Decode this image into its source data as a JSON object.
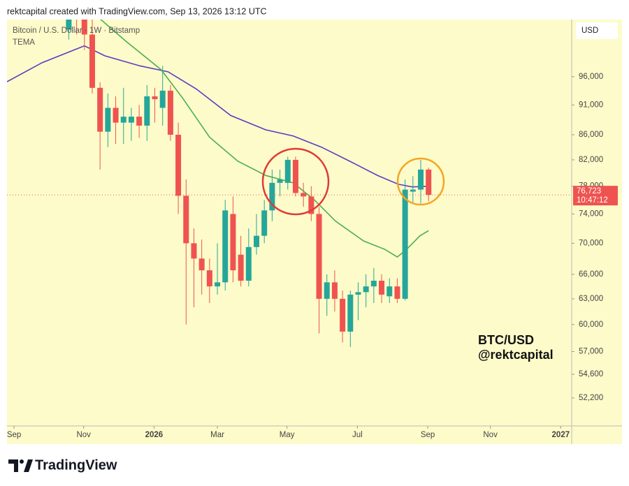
{
  "header": "rektcapital created with TradingView.com, Sep 13, 2026 13:12 UTC",
  "footer": {
    "logo": "TradingView"
  },
  "chart_data": {
    "type": "candlestick",
    "title": "Bitcoin / U.S. Dollar · 1W · Bitstamp",
    "subtitle": "TEMA",
    "currency": "USD",
    "annotations": [
      "BTC/USD",
      "@rektcapital"
    ],
    "yscale": "log",
    "up_color": "#26a69a",
    "down_color": "#ef5350",
    "background": "#fdfbc9",
    "x": [
      7,
      8,
      9,
      10,
      11,
      12,
      13,
      14,
      15,
      16,
      17,
      18,
      19,
      20,
      21,
      22,
      23,
      24,
      25,
      26,
      27,
      28,
      29,
      30,
      31,
      32,
      33,
      34,
      35,
      36,
      37,
      38,
      39,
      40,
      41,
      42,
      43,
      44,
      45,
      46,
      47,
      48,
      49,
      50,
      51,
      52,
      53
    ],
    "open": [
      105000,
      110000,
      108000,
      104000,
      94000,
      86500,
      90500,
      88000,
      88000,
      89000,
      87500,
      92500,
      90500,
      93500,
      86000,
      76600,
      70000,
      68000,
      66500,
      64500,
      65000,
      74000,
      68500,
      65200,
      69500,
      71000,
      74500,
      78500,
      78500,
      82000,
      77000,
      76500,
      74000,
      63000,
      65000,
      63000,
      59200,
      63500,
      63800,
      64500,
      65200,
      63300,
      64500,
      63000,
      77200,
      77500,
      80500
    ],
    "high": [
      112000,
      115000,
      112000,
      107000,
      95000,
      93000,
      92500,
      94000,
      90500,
      91000,
      94500,
      94000,
      98000,
      94500,
      88000,
      79000,
      72000,
      70500,
      68000,
      70000,
      76000,
      76500,
      71000,
      72000,
      74000,
      76000,
      80500,
      80500,
      82500,
      82500,
      78500,
      78000,
      75000,
      66000,
      66500,
      64000,
      64000,
      65000,
      66000,
      66800,
      66000,
      65500,
      65500,
      79000,
      79500,
      82000,
      80800
    ],
    "low": [
      103000,
      104000,
      101000,
      93000,
      80500,
      84000,
      84500,
      84500,
      85000,
      85500,
      85000,
      88000,
      87500,
      85000,
      74000,
      60000,
      62000,
      63500,
      62500,
      63500,
      64000,
      65000,
      64500,
      64500,
      68500,
      70000,
      73000,
      76500,
      77500,
      76500,
      75000,
      73000,
      59000,
      61000,
      61500,
      58000,
      57500,
      60500,
      62000,
      62500,
      62500,
      62500,
      62500,
      62800,
      75500,
      75500,
      75800
    ],
    "close": [
      110000,
      108000,
      104000,
      94000,
      86500,
      90500,
      88000,
      89000,
      89000,
      87500,
      92500,
      92000,
      93500,
      86000,
      76600,
      70000,
      68000,
      66500,
      64500,
      65000,
      74500,
      66500,
      65200,
      69500,
      71000,
      74500,
      78500,
      79000,
      82000,
      77000,
      76500,
      74000,
      63000,
      65000,
      63000,
      59200,
      63500,
      63800,
      64500,
      65200,
      63500,
      64500,
      63000,
      77500,
      77500,
      80500,
      76723
    ],
    "lines": [
      {
        "color": "#5b3cc4",
        "x": [
          -0.9,
          3.6,
          9.0,
          11.6,
          16.1,
          19.7,
          23.3,
          27.7,
          32.2,
          35.7,
          39.3,
          42.9,
          46.5,
          49.1,
          50.9,
          53.0
        ],
        "values": [
          95100,
          98600,
          101800,
          99900,
          98000,
          96900,
          93800,
          89200,
          86800,
          85800,
          84000,
          81800,
          79600,
          78300,
          77900,
          78000
        ]
      },
      {
        "color": "#4caf50",
        "x": [
          10.3,
          14.3,
          18.8,
          21.5,
          25.0,
          28.6,
          32.2,
          35.7,
          38.4,
          41.1,
          44.7,
          47.4,
          49.0,
          50.1,
          51.9,
          53.0
        ],
        "values": [
          108100,
          102700,
          97300,
          92300,
          85600,
          81800,
          79600,
          78500,
          76000,
          73000,
          70300,
          69200,
          68200,
          69100,
          71000,
          71700
        ]
      }
    ],
    "last_price": {
      "value": 76723,
      "label": "76,723"
    },
    "countdown": "10:47:12",
    "xlim": [
      -0.9,
      71.3
    ],
    "xticks": [
      {
        "value": 0,
        "label": "Sep"
      },
      {
        "value": 8.9,
        "label": "Nov"
      },
      {
        "value": 17.9,
        "label": "2026"
      },
      {
        "value": 26.0,
        "label": "Mar"
      },
      {
        "value": 34.9,
        "label": "May"
      },
      {
        "value": 43.9,
        "label": "Jul"
      },
      {
        "value": 52.9,
        "label": "Sep"
      },
      {
        "value": 60.9,
        "label": "Nov"
      },
      {
        "value": 69.9,
        "label": "2027"
      }
    ],
    "ylim": [
      49500,
      107000
    ],
    "yticks": [
      {
        "value": 52200,
        "label": "52,200"
      },
      {
        "value": 54600,
        "label": "54,600"
      },
      {
        "value": 57000,
        "label": "57,000"
      },
      {
        "value": 60000,
        "label": "60,000"
      },
      {
        "value": 63000,
        "label": "63,000"
      },
      {
        "value": 66000,
        "label": "66,000"
      },
      {
        "value": 70000,
        "label": "70,000"
      },
      {
        "value": 74000,
        "label": "74,000"
      },
      {
        "value": 78000,
        "label": "78,000"
      },
      {
        "value": 82000,
        "label": "82,000"
      },
      {
        "value": 86000,
        "label": "86,000"
      },
      {
        "value": 91000,
        "label": "91,000"
      },
      {
        "value": 96000,
        "label": "96,000"
      }
    ]
  }
}
